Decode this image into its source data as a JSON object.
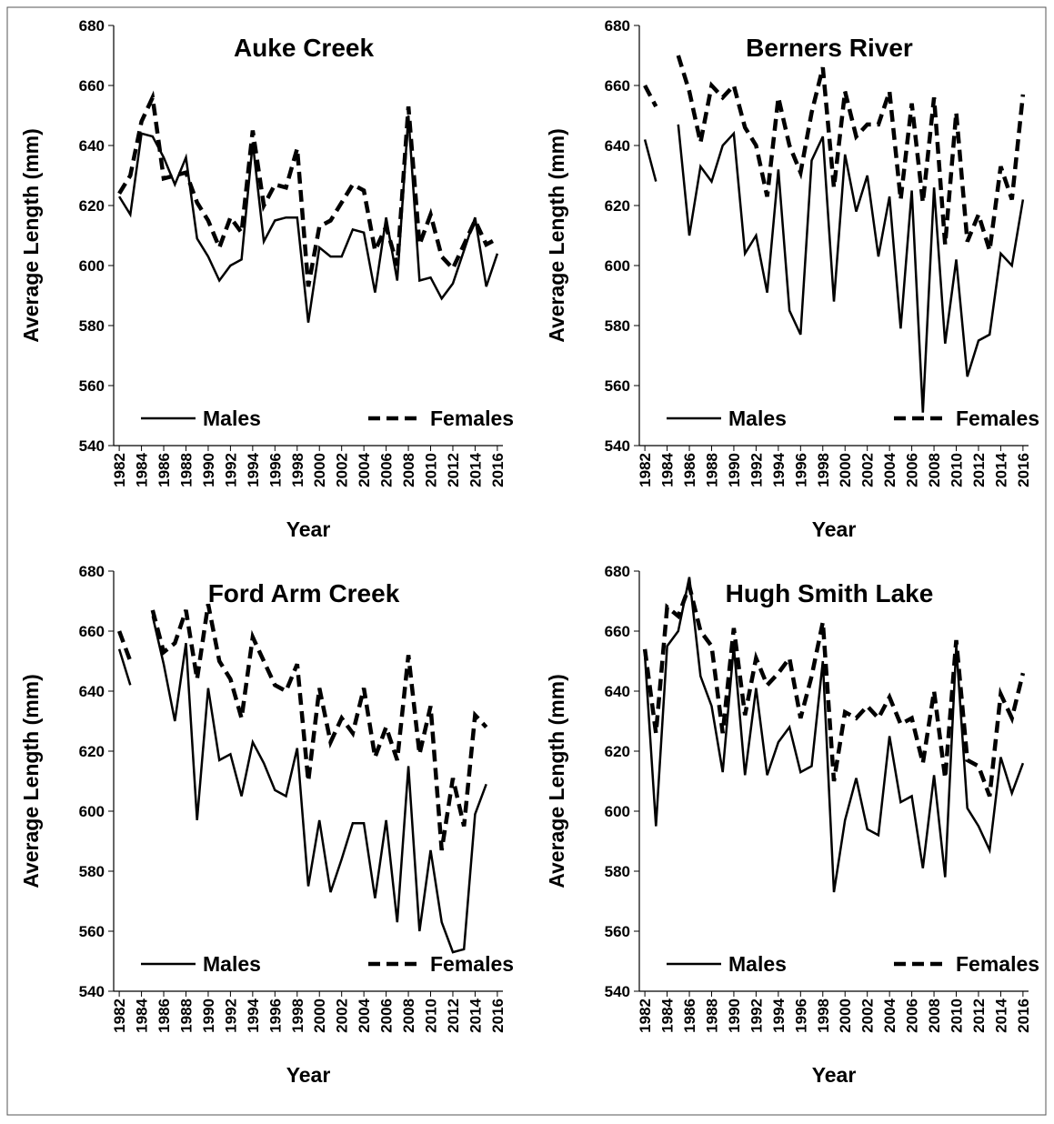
{
  "chart_data": [
    {
      "type": "line",
      "title": "Auke Creek",
      "xlabel": "Year",
      "ylabel": "Average Length (mm)",
      "x": [
        1982,
        1983,
        1984,
        1985,
        1986,
        1987,
        1988,
        1989,
        1990,
        1991,
        1992,
        1993,
        1994,
        1995,
        1996,
        1997,
        1998,
        1999,
        2000,
        2001,
        2002,
        2003,
        2004,
        2005,
        2006,
        2007,
        2008,
        2009,
        2010,
        2011,
        2012,
        2013,
        2014,
        2015,
        2016
      ],
      "xlim": [
        1981.5,
        2016.5
      ],
      "xticks": [
        1982,
        1984,
        1986,
        1988,
        1990,
        1992,
        1994,
        1996,
        1998,
        2000,
        2002,
        2004,
        2006,
        2008,
        2010,
        2012,
        2014,
        2016
      ],
      "ylim": [
        540,
        680
      ],
      "yticks": [
        540,
        560,
        580,
        600,
        620,
        640,
        660,
        680
      ],
      "legend": "lower center",
      "series": [
        {
          "name": "Males",
          "color": "#000000",
          "style": "solid",
          "values": [
            623,
            617,
            644,
            643,
            636,
            627,
            636,
            609,
            603,
            595,
            600,
            602,
            641,
            608,
            615,
            616,
            616,
            581,
            606,
            603,
            603,
            612,
            611,
            591,
            616,
            595,
            650,
            595,
            596,
            589,
            594,
            605,
            616,
            593,
            604
          ]
        },
        {
          "name": "Females",
          "color": "#000000",
          "style": "dashed",
          "values": [
            624,
            630,
            648,
            656,
            629,
            630,
            631,
            621,
            615,
            606,
            616,
            611,
            645,
            620,
            627,
            626,
            639,
            593,
            613,
            615,
            621,
            627,
            625,
            605,
            613,
            600,
            653,
            607,
            617,
            603,
            599,
            607,
            615,
            607,
            609
          ]
        }
      ]
    },
    {
      "type": "line",
      "title": "Berners River",
      "xlabel": "Year",
      "ylabel": "Average Length (mm)",
      "x": [
        1982,
        1983,
        1984,
        1985,
        1986,
        1987,
        1988,
        1989,
        1990,
        1991,
        1992,
        1993,
        1994,
        1995,
        1996,
        1997,
        1998,
        1999,
        2000,
        2001,
        2002,
        2003,
        2004,
        2005,
        2006,
        2007,
        2008,
        2009,
        2010,
        2011,
        2012,
        2013,
        2014,
        2015,
        2016
      ],
      "xlim": [
        1981.5,
        2016.5
      ],
      "xticks": [
        1982,
        1984,
        1986,
        1988,
        1990,
        1992,
        1994,
        1996,
        1998,
        2000,
        2002,
        2004,
        2006,
        2008,
        2010,
        2012,
        2014,
        2016
      ],
      "ylim": [
        540,
        680
      ],
      "yticks": [
        540,
        560,
        580,
        600,
        620,
        640,
        660,
        680
      ],
      "legend": "lower center",
      "series": [
        {
          "name": "Males",
          "color": "#000000",
          "style": "solid",
          "values": [
            642,
            628,
            null,
            647,
            610,
            633,
            628,
            640,
            644,
            604,
            610,
            591,
            632,
            585,
            577,
            635,
            643,
            588,
            637,
            618,
            630,
            603,
            623,
            579,
            625,
            551,
            626,
            574,
            602,
            563,
            575,
            577,
            604,
            600,
            622
          ]
        },
        {
          "name": "Females",
          "color": "#000000",
          "style": "dashed",
          "values": [
            660,
            653,
            null,
            670,
            658,
            641,
            660,
            656,
            660,
            646,
            640,
            623,
            656,
            640,
            631,
            651,
            666,
            626,
            658,
            643,
            647,
            647,
            658,
            622,
            654,
            621,
            656,
            607,
            651,
            608,
            617,
            605,
            633,
            622,
            657
          ]
        }
      ]
    },
    {
      "type": "line",
      "title": "Ford Arm Creek",
      "xlabel": "Year",
      "ylabel": "Average Length (mm)",
      "x": [
        1982,
        1983,
        1984,
        1985,
        1986,
        1987,
        1988,
        1989,
        1990,
        1991,
        1992,
        1993,
        1994,
        1995,
        1996,
        1997,
        1998,
        1999,
        2000,
        2001,
        2002,
        2003,
        2004,
        2005,
        2006,
        2007,
        2008,
        2009,
        2010,
        2011,
        2012,
        2013,
        2014,
        2015,
        2016
      ],
      "xlim": [
        1981.5,
        2016.5
      ],
      "xticks": [
        1982,
        1984,
        1986,
        1988,
        1990,
        1992,
        1994,
        1996,
        1998,
        2000,
        2002,
        2004,
        2006,
        2008,
        2010,
        2012,
        2014,
        2016
      ],
      "ylim": [
        540,
        680
      ],
      "yticks": [
        540,
        560,
        580,
        600,
        620,
        640,
        660,
        680
      ],
      "legend": "lower center",
      "series": [
        {
          "name": "Males",
          "color": "#000000",
          "style": "solid",
          "values": [
            654,
            642,
            null,
            665,
            649,
            630,
            656,
            597,
            641,
            617,
            619,
            605,
            623,
            616,
            607,
            605,
            621,
            575,
            597,
            573,
            584,
            596,
            596,
            571,
            597,
            563,
            615,
            560,
            587,
            563,
            553,
            554,
            599,
            609,
            null
          ]
        },
        {
          "name": "Females",
          "color": "#000000",
          "style": "dashed",
          "values": [
            660,
            650,
            null,
            667,
            653,
            656,
            667,
            644,
            669,
            650,
            644,
            631,
            658,
            650,
            642,
            640,
            649,
            610,
            641,
            623,
            631,
            626,
            641,
            618,
            628,
            617,
            652,
            619,
            635,
            587,
            611,
            595,
            632,
            628,
            null
          ]
        }
      ]
    },
    {
      "type": "line",
      "title": "Hugh Smith Lake",
      "xlabel": "Year",
      "ylabel": "Average Length (mm)",
      "x": [
        1982,
        1983,
        1984,
        1985,
        1986,
        1987,
        1988,
        1989,
        1990,
        1991,
        1992,
        1993,
        1994,
        1995,
        1996,
        1997,
        1998,
        1999,
        2000,
        2001,
        2002,
        2003,
        2004,
        2005,
        2006,
        2007,
        2008,
        2009,
        2010,
        2011,
        2012,
        2013,
        2014,
        2015,
        2016
      ],
      "xlim": [
        1981.5,
        2016.5
      ],
      "xticks": [
        1982,
        1984,
        1986,
        1988,
        1990,
        1992,
        1994,
        1996,
        1998,
        2000,
        2002,
        2004,
        2006,
        2008,
        2010,
        2012,
        2014,
        2016
      ],
      "ylim": [
        540,
        680
      ],
      "yticks": [
        540,
        560,
        580,
        600,
        620,
        640,
        660,
        680
      ],
      "legend": "lower center",
      "series": [
        {
          "name": "Males",
          "color": "#000000",
          "style": "solid",
          "values": [
            652,
            595,
            655,
            660,
            678,
            645,
            635,
            613,
            655,
            612,
            641,
            612,
            623,
            628,
            613,
            615,
            650,
            573,
            597,
            611,
            594,
            592,
            625,
            603,
            605,
            581,
            612,
            578,
            655,
            601,
            595,
            587,
            618,
            606,
            616
          ]
        },
        {
          "name": "Females",
          "color": "#000000",
          "style": "dashed",
          "values": [
            654,
            626,
            668,
            665,
            675,
            660,
            655,
            626,
            661,
            632,
            651,
            642,
            646,
            651,
            631,
            645,
            663,
            610,
            633,
            631,
            635,
            631,
            638,
            629,
            631,
            616,
            640,
            611,
            657,
            617,
            615,
            605,
            639,
            631,
            646
          ]
        }
      ]
    }
  ]
}
